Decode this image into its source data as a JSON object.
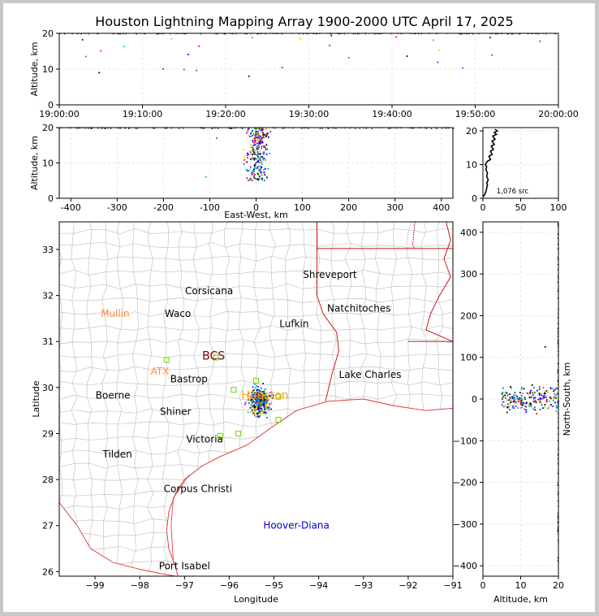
{
  "title": "Houston Lightning Mapping Array 1900-2000 UTC April 17, 2025",
  "chart_data": [
    {
      "id": "time_height",
      "type": "scatter",
      "xlabel": "",
      "ylabel": "Altitude, km",
      "xticks": [
        "19:00:00",
        "19:10:00",
        "19:20:00",
        "19:30:00",
        "19:40:00",
        "19:50:00",
        "20:00:00"
      ],
      "xlim_minutes": [
        0,
        60
      ],
      "yticks": [
        0,
        10,
        20
      ],
      "ylim": [
        0,
        20
      ],
      "grid": true,
      "points": [
        [
          2.8,
          18.2
        ],
        [
          3.2,
          13.5
        ],
        [
          5.0,
          15.1
        ],
        [
          4.8,
          9.0
        ],
        [
          7.8,
          16.3
        ],
        [
          12.5,
          10.0
        ],
        [
          13.5,
          18.5
        ],
        [
          15.0,
          9.9
        ],
        [
          15.5,
          14.1
        ],
        [
          16.5,
          9.6
        ],
        [
          16.8,
          16.4
        ],
        [
          22.8,
          8.0
        ],
        [
          23.2,
          18.8
        ],
        [
          26.8,
          10.4
        ],
        [
          29.0,
          18.5
        ],
        [
          32.5,
          16.6
        ],
        [
          32.7,
          19.4
        ],
        [
          34.8,
          13.2
        ],
        [
          40.5,
          19.0
        ],
        [
          41.8,
          13.6
        ],
        [
          45.0,
          18.1
        ],
        [
          45.5,
          11.9
        ],
        [
          45.7,
          15.3
        ],
        [
          48.5,
          10.3
        ],
        [
          51.8,
          18.8
        ],
        [
          52.0,
          13.9
        ],
        [
          57.8,
          17.8
        ]
      ]
    },
    {
      "id": "ew_height",
      "type": "scatter",
      "xlabel": "East-West, km",
      "ylabel": "Altitude, km",
      "xticks": [
        -400,
        -300,
        -200,
        -100,
        0,
        100,
        200,
        300,
        400
      ],
      "xlim": [
        -425,
        425
      ],
      "yticks": [
        0,
        10,
        20
      ],
      "ylim": [
        0,
        20
      ],
      "grid": true
    },
    {
      "id": "alt_hist",
      "type": "line",
      "xticks": [
        0,
        50,
        100
      ],
      "xlim": [
        0,
        100
      ],
      "yticks": [
        0,
        10,
        20
      ],
      "ylim": [
        0,
        21
      ],
      "annotation": "1,076 src",
      "curve": [
        [
          0,
          0.5
        ],
        [
          2,
          1
        ],
        [
          4,
          2
        ],
        [
          5,
          3
        ],
        [
          6,
          4
        ],
        [
          5,
          4.5
        ],
        [
          7,
          5.5
        ],
        [
          5,
          6.5
        ],
        [
          6,
          7.5
        ],
        [
          4,
          8.5
        ],
        [
          5,
          9.5
        ],
        [
          3,
          10
        ],
        [
          6,
          11
        ],
        [
          10,
          11.5
        ],
        [
          8,
          12.5
        ],
        [
          12,
          13
        ],
        [
          10,
          14
        ],
        [
          14,
          14.5
        ],
        [
          11,
          15.5
        ],
        [
          15,
          16
        ],
        [
          12,
          17
        ],
        [
          16,
          17.5
        ],
        [
          13,
          18.5
        ],
        [
          18,
          19
        ],
        [
          15,
          19.5
        ],
        [
          19,
          20
        ],
        [
          16,
          20.5
        ]
      ]
    },
    {
      "id": "plan_view",
      "type": "map",
      "xlabel": "Longitude",
      "ylabel": "Latitude",
      "xticks": [
        -99,
        -98,
        -97,
        -96,
        -95,
        -94,
        -93,
        -92,
        -91
      ],
      "xlim": [
        -99.8,
        -91.0
      ],
      "yticks": [
        26,
        27,
        28,
        29,
        30,
        31,
        32,
        33
      ],
      "ylim": [
        25.9,
        33.6
      ],
      "cities": [
        {
          "name": "Shreveport",
          "lon": -93.75,
          "lat": 32.45,
          "color": "#000000"
        },
        {
          "name": "Corsicana",
          "lon": -96.45,
          "lat": 32.1,
          "color": "#000000"
        },
        {
          "name": "Natchitoches",
          "lon": -93.1,
          "lat": 31.72,
          "color": "#000000"
        },
        {
          "name": "Mullin",
          "lon": -98.55,
          "lat": 31.6,
          "color": "#ff8c40"
        },
        {
          "name": "Waco",
          "lon": -97.15,
          "lat": 31.6,
          "color": "#000000"
        },
        {
          "name": "Lufkin",
          "lon": -94.55,
          "lat": 31.38,
          "color": "#000000"
        },
        {
          "name": "BCS",
          "lon": -96.35,
          "lat": 30.68,
          "color": "#7a0000"
        },
        {
          "name": "ATX",
          "lon": -97.55,
          "lat": 30.35,
          "color": "#ff8c40"
        },
        {
          "name": "Bastrop",
          "lon": -96.9,
          "lat": 30.18,
          "color": "#000000"
        },
        {
          "name": "Lake Charles",
          "lon": -92.85,
          "lat": 30.28,
          "color": "#000000"
        },
        {
          "name": "Boerne",
          "lon": -98.6,
          "lat": 29.83,
          "color": "#000000"
        },
        {
          "name": "Houston",
          "lon": -95.2,
          "lat": 29.82,
          "color": "#ffa500"
        },
        {
          "name": "Shiner",
          "lon": -97.2,
          "lat": 29.48,
          "color": "#000000"
        },
        {
          "name": "Victoria",
          "lon": -96.55,
          "lat": 28.88,
          "color": "#000000"
        },
        {
          "name": "Tilden",
          "lon": -98.5,
          "lat": 28.55,
          "color": "#000000"
        },
        {
          "name": "Corpus Christi",
          "lon": -96.7,
          "lat": 27.8,
          "color": "#000000"
        },
        {
          "name": "Hoover-Diana",
          "lon": -94.5,
          "lat": 27.0,
          "color": "#0000cc"
        },
        {
          "name": "Port Isabel",
          "lon": -97.0,
          "lat": 26.12,
          "color": "#000000"
        }
      ],
      "stations": [
        [
          -97.4,
          30.6
        ],
        [
          -96.3,
          30.65
        ],
        [
          -95.9,
          29.95
        ],
        [
          -95.4,
          30.15
        ],
        [
          -94.9,
          29.8
        ],
        [
          -94.9,
          29.3
        ],
        [
          -95.8,
          29.0
        ],
        [
          -96.2,
          28.95
        ]
      ]
    },
    {
      "id": "ns_height",
      "type": "scatter",
      "xlabel": "Altitude, km",
      "ylabel": "North-South, km",
      "xticks": [
        0,
        10,
        20
      ],
      "xlim": [
        0,
        20
      ],
      "yticks": [
        -400,
        -300,
        -200,
        -100,
        0,
        100,
        200,
        300,
        400
      ],
      "ylim": [
        -425,
        425
      ],
      "grid": true
    }
  ]
}
